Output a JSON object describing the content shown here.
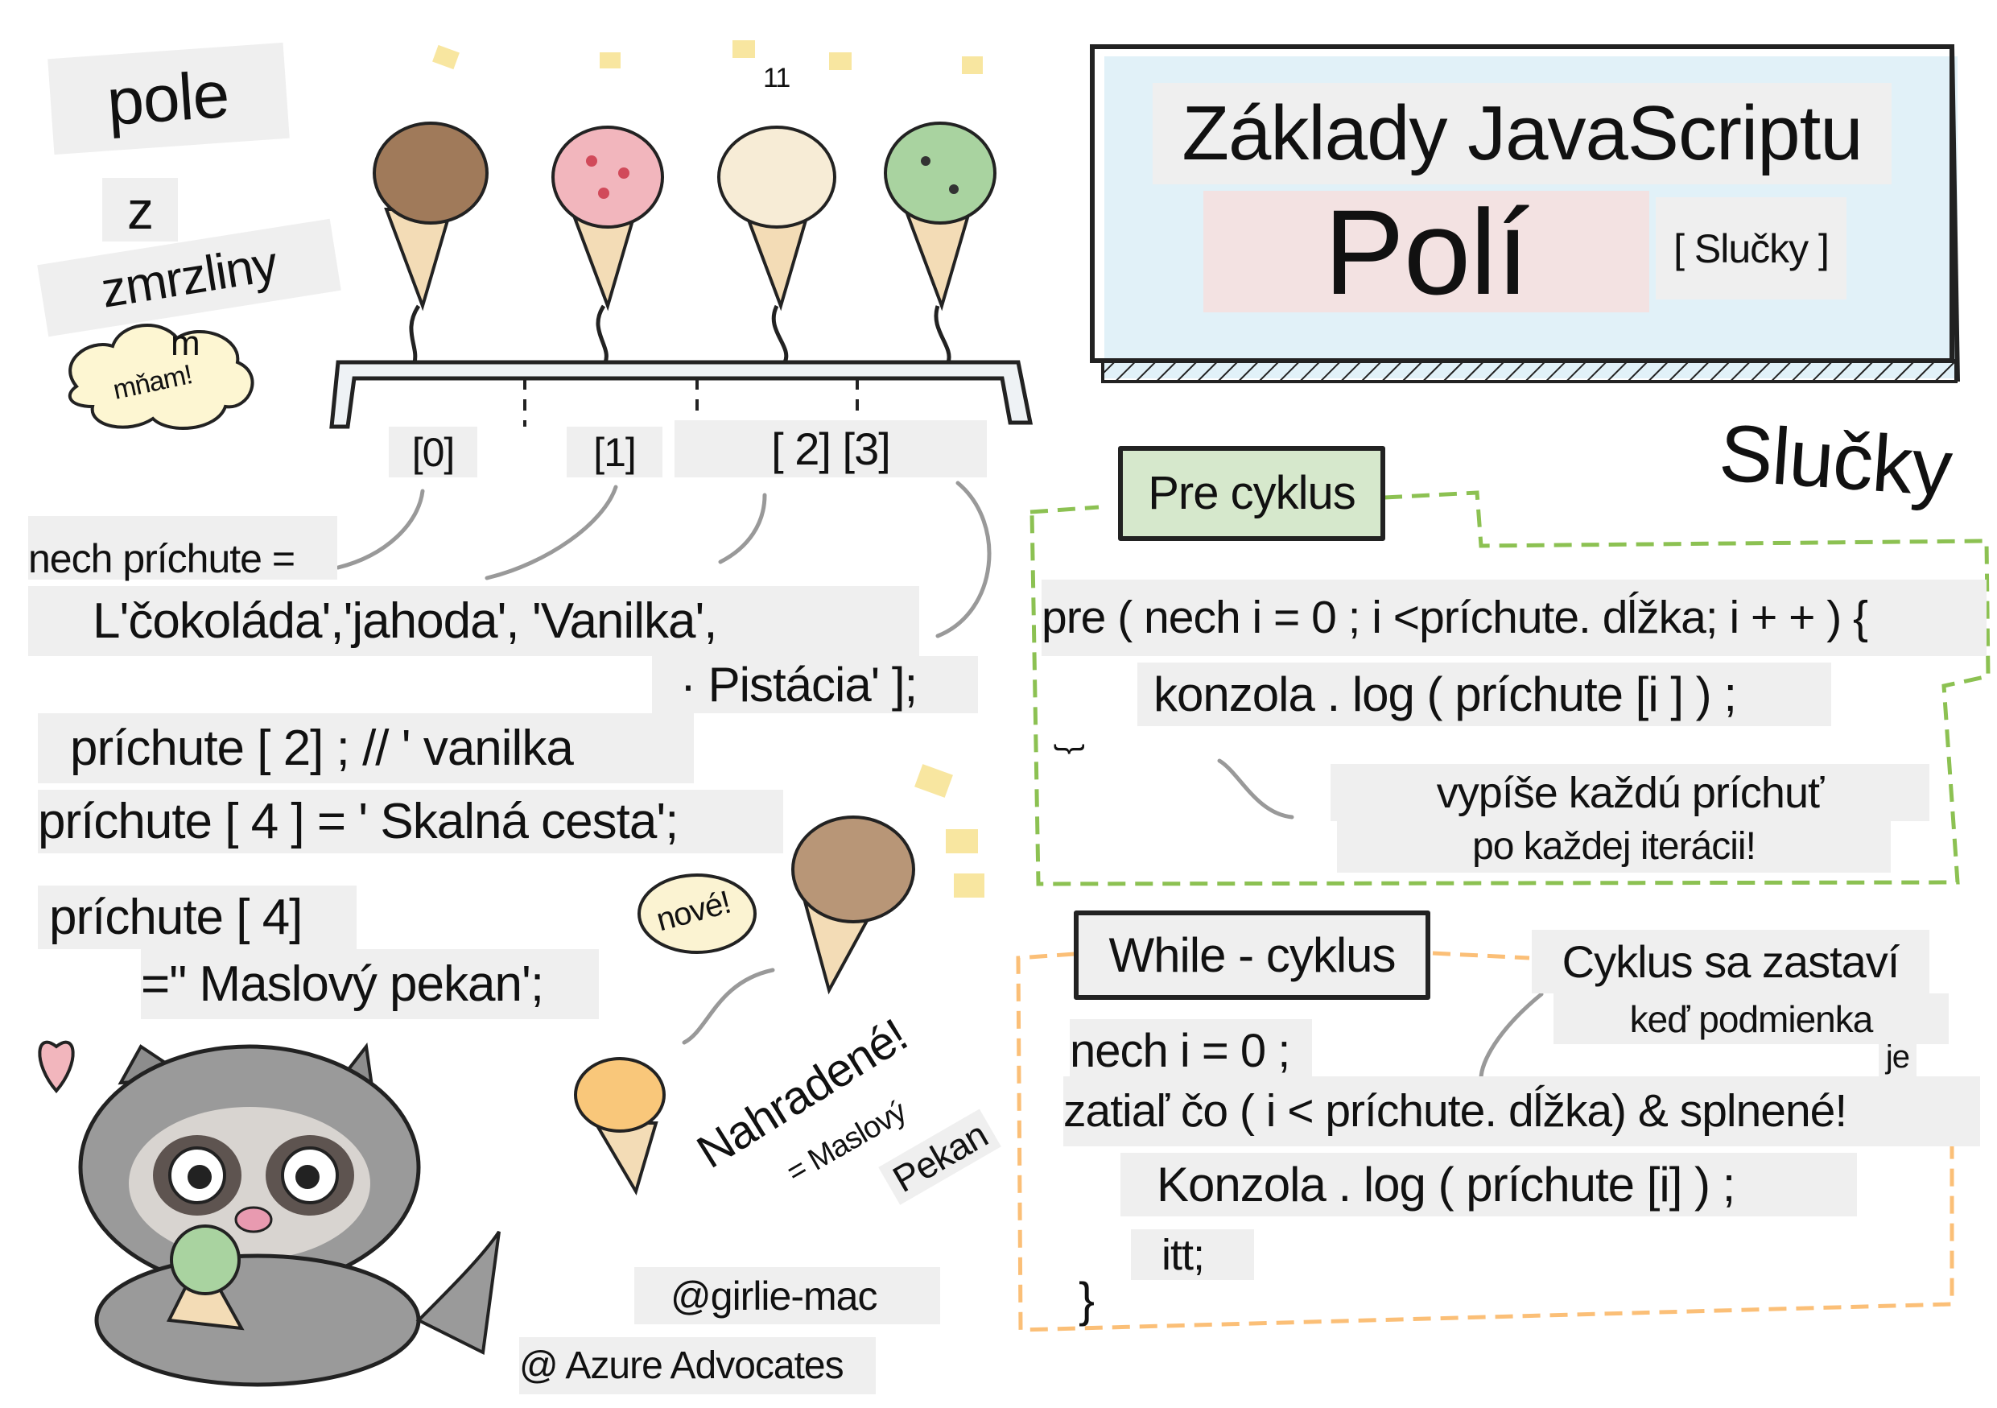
{
  "left": {
    "title_line1": "pole",
    "title_line2": "z",
    "title_line3": "zmrzliny",
    "cloud_text_top": "m",
    "cloud_text": "mňam!",
    "cone_counter": "11",
    "indexes": [
      "[0]",
      "[1]",
      "[ 2] [3]"
    ],
    "code": {
      "declare": "nech príchute =",
      "values_line1": "L'čokoláda','jahoda', 'Vanilka',",
      "values_line2": "· Pistácia' ];",
      "access": "príchute [ 2] ; // ' vanilka",
      "assign": "príchute [ 4 ] = ' Skalná cesta';",
      "replace_line1": "príchute [ 4]",
      "replace_line2": "=\" Maslový pekan';"
    },
    "bubble_new": "nové!",
    "replaced": "Nahradené!",
    "replaced_sub1": "= Maslový",
    "replaced_sub2": "Pekan",
    "credit_author": "@girlie-mac",
    "credit_org": "@ Azure Advocates"
  },
  "header": {
    "title": "Základy JavaScriptu",
    "subtitle": "Polí",
    "tag": "[ Slučky ]"
  },
  "loops": {
    "section_title": "Slučky",
    "for_loop": {
      "title": "Pre cyklus",
      "line1": "pre ( nech i = 0 ; i <príchute. dĺžka; i + + ) {",
      "line2": "konzola . log ( príchute [i ] ) ;",
      "close": "}",
      "note_line1": "vypíše každú príchuť",
      "note_line2": "po každej iterácii!"
    },
    "while_loop": {
      "title": "While - cyklus",
      "note_line1": "Cyklus sa zastaví",
      "note_line2": "keď podmienka",
      "note_line3": "je",
      "line1": "nech i = 0 ;",
      "line2": "zatiaľ čo ( i < príchute. dĺžka) & splnené!",
      "line3": "Konzola . log ( príchute [i] ) ;",
      "line4": "itt;",
      "close": "}"
    }
  },
  "colors": {
    "for_accent": "#8cc152",
    "while_accent": "#fbbf77",
    "title_bg": "#d9eef6",
    "label_bg": "#efefef",
    "chocolate": "#a07a5a",
    "strawberry": "#f2b6bd",
    "vanilla": "#f7ecd6",
    "pistachio": "#a9d3a0"
  }
}
